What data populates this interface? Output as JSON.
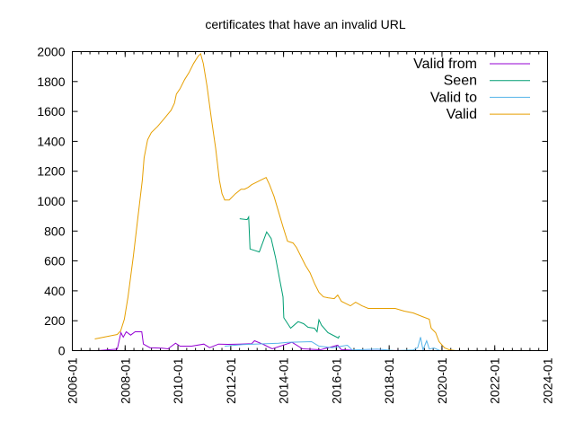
{
  "chart_data": {
    "type": "line",
    "title": "certificates that have an invalid URL",
    "xlabel": "",
    "ylabel": "",
    "xlim": [
      2006.0,
      2024.0
    ],
    "ylim": [
      0,
      2000
    ],
    "grid": false,
    "legend_position": "top-right",
    "x_ticks": [
      {
        "value": 2006,
        "label": "2006-01"
      },
      {
        "value": 2008,
        "label": "2008-01"
      },
      {
        "value": 2010,
        "label": "2010-01"
      },
      {
        "value": 2012,
        "label": "2012-01"
      },
      {
        "value": 2014,
        "label": "2014-01"
      },
      {
        "value": 2016,
        "label": "2016-01"
      },
      {
        "value": 2018,
        "label": "2018-01"
      },
      {
        "value": 2020,
        "label": "2020-01"
      },
      {
        "value": 2022,
        "label": "2022-01"
      },
      {
        "value": 2024,
        "label": "2024-01"
      }
    ],
    "y_ticks": [
      0,
      200,
      400,
      600,
      800,
      1000,
      1200,
      1400,
      1600,
      1800,
      2000
    ],
    "series": [
      {
        "name": "Valid from",
        "color": "#9400d3",
        "points": [
          [
            2006.95,
            0
          ],
          [
            2007.7,
            10
          ],
          [
            2007.84,
            120
          ],
          [
            2007.93,
            90
          ],
          [
            2008.04,
            126
          ],
          [
            2008.21,
            104
          ],
          [
            2008.38,
            126
          ],
          [
            2008.63,
            126
          ],
          [
            2008.69,
            44
          ],
          [
            2008.94,
            20
          ],
          [
            2009.4,
            16
          ],
          [
            2009.62,
            12
          ],
          [
            2009.91,
            50
          ],
          [
            2010.08,
            30
          ],
          [
            2010.52,
            30
          ],
          [
            2010.98,
            44
          ],
          [
            2011.2,
            20
          ],
          [
            2011.54,
            44
          ],
          [
            2011.88,
            42
          ],
          [
            2012.34,
            44
          ],
          [
            2012.79,
            46
          ],
          [
            2012.9,
            66
          ],
          [
            2013.23,
            42
          ],
          [
            2013.57,
            12
          ],
          [
            2014.32,
            56
          ],
          [
            2014.72,
            12
          ],
          [
            2015.4,
            6
          ],
          [
            2016.05,
            36
          ],
          [
            2016.19,
            6
          ],
          [
            2016.87,
            2
          ],
          [
            2020.27,
            0
          ]
        ]
      },
      {
        "name": "Seen",
        "color": "#009e73",
        "points": [
          [
            2012.34,
            882
          ],
          [
            2012.62,
            876
          ],
          [
            2012.68,
            894
          ],
          [
            2012.73,
            680
          ],
          [
            2013.08,
            660
          ],
          [
            2013.36,
            794
          ],
          [
            2013.53,
            750
          ],
          [
            2013.7,
            620
          ],
          [
            2013.87,
            460
          ],
          [
            2013.98,
            360
          ],
          [
            2014.01,
            220
          ],
          [
            2014.27,
            150
          ],
          [
            2014.55,
            194
          ],
          [
            2014.76,
            180
          ],
          [
            2014.93,
            156
          ],
          [
            2015.17,
            150
          ],
          [
            2015.27,
            126
          ],
          [
            2015.34,
            206
          ],
          [
            2015.44,
            170
          ],
          [
            2015.68,
            120
          ],
          [
            2016.08,
            84
          ],
          [
            2016.11,
            100
          ]
        ]
      },
      {
        "name": "Valid to",
        "color": "#56b4e9",
        "points": [
          [
            2011.77,
            30
          ],
          [
            2012.45,
            40
          ],
          [
            2013.13,
            45
          ],
          [
            2013.81,
            50
          ],
          [
            2014.15,
            55
          ],
          [
            2015.06,
            60
          ],
          [
            2015.34,
            30
          ],
          [
            2015.85,
            20
          ],
          [
            2016.42,
            36
          ],
          [
            2016.6,
            5
          ],
          [
            2017.55,
            10
          ],
          [
            2018.23,
            0
          ],
          [
            2018.91,
            5
          ],
          [
            2019.08,
            20
          ],
          [
            2019.19,
            90
          ],
          [
            2019.28,
            5
          ],
          [
            2019.42,
            66
          ],
          [
            2019.52,
            10
          ],
          [
            2019.69,
            18
          ],
          [
            2019.93,
            0
          ]
        ]
      },
      {
        "name": "Valid",
        "color": "#e69f00",
        "points": [
          [
            2006.85,
            78
          ],
          [
            2007.19,
            90
          ],
          [
            2007.7,
            108
          ],
          [
            2007.83,
            132
          ],
          [
            2007.97,
            210
          ],
          [
            2008.11,
            360
          ],
          [
            2008.31,
            630
          ],
          [
            2008.45,
            840
          ],
          [
            2008.65,
            1140
          ],
          [
            2008.72,
            1290
          ],
          [
            2008.85,
            1410
          ],
          [
            2008.99,
            1458
          ],
          [
            2009.23,
            1500
          ],
          [
            2009.46,
            1548
          ],
          [
            2009.74,
            1608
          ],
          [
            2009.87,
            1656
          ],
          [
            2009.94,
            1716
          ],
          [
            2010.08,
            1752
          ],
          [
            2010.25,
            1812
          ],
          [
            2010.42,
            1860
          ],
          [
            2010.59,
            1920
          ],
          [
            2010.76,
            1968
          ],
          [
            2010.86,
            1986
          ],
          [
            2010.96,
            1920
          ],
          [
            2011.1,
            1770
          ],
          [
            2011.26,
            1560
          ],
          [
            2011.43,
            1350
          ],
          [
            2011.57,
            1140
          ],
          [
            2011.67,
            1050
          ],
          [
            2011.77,
            1008
          ],
          [
            2011.94,
            1008
          ],
          [
            2012.18,
            1050
          ],
          [
            2012.39,
            1080
          ],
          [
            2012.52,
            1080
          ],
          [
            2012.66,
            1092
          ],
          [
            2012.79,
            1110
          ],
          [
            2013.13,
            1140
          ],
          [
            2013.34,
            1158
          ],
          [
            2013.47,
            1110
          ],
          [
            2013.64,
            1032
          ],
          [
            2013.81,
            930
          ],
          [
            2013.98,
            828
          ],
          [
            2014.15,
            732
          ],
          [
            2014.36,
            720
          ],
          [
            2014.49,
            690
          ],
          [
            2014.66,
            630
          ],
          [
            2014.83,
            570
          ],
          [
            2015.0,
            522
          ],
          [
            2015.17,
            450
          ],
          [
            2015.34,
            390
          ],
          [
            2015.51,
            360
          ],
          [
            2015.68,
            354
          ],
          [
            2015.92,
            348
          ],
          [
            2016.05,
            372
          ],
          [
            2016.19,
            330
          ],
          [
            2016.53,
            300
          ],
          [
            2016.73,
            324
          ],
          [
            2016.97,
            300
          ],
          [
            2017.21,
            282
          ],
          [
            2017.72,
            282
          ],
          [
            2018.23,
            282
          ],
          [
            2018.57,
            264
          ],
          [
            2018.91,
            252
          ],
          [
            2019.25,
            228
          ],
          [
            2019.52,
            210
          ],
          [
            2019.59,
            150
          ],
          [
            2019.76,
            120
          ],
          [
            2019.89,
            60
          ],
          [
            2020.1,
            18
          ],
          [
            2020.27,
            6
          ],
          [
            2020.54,
            0
          ]
        ]
      }
    ]
  }
}
